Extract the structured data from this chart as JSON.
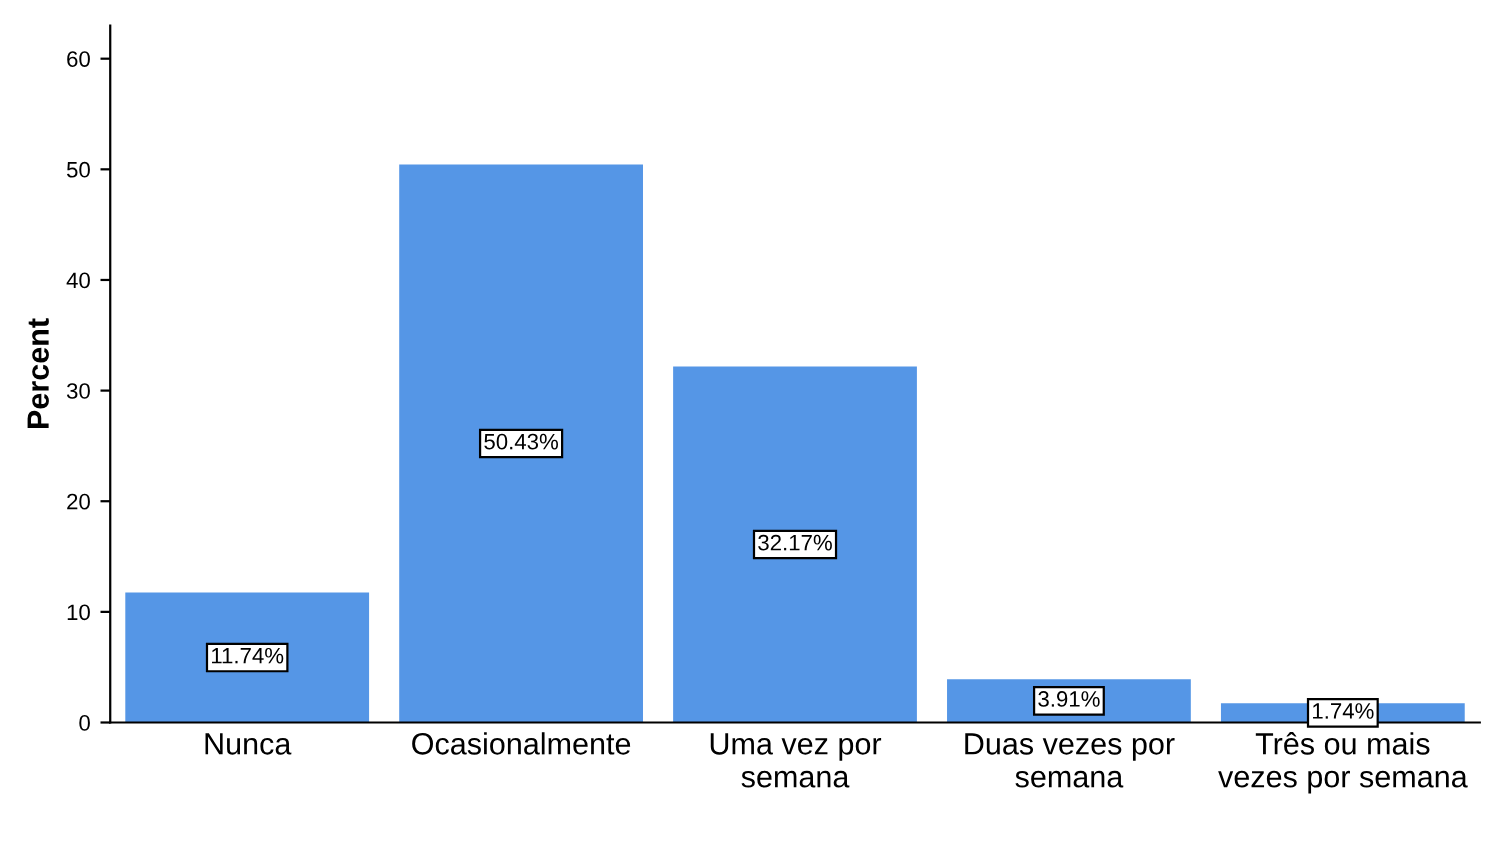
{
  "chart_data": {
    "type": "bar",
    "ylabel": "Percent",
    "categories": [
      "Nunca",
      "Ocasionalmente",
      "Uma vez por\nsemana",
      "Duas vezes por\nsemana",
      "Três ou mais\nvezes por semana"
    ],
    "values": [
      11.74,
      50.43,
      32.17,
      3.91,
      1.74
    ],
    "value_labels": [
      "11.74%",
      "50.43%",
      "32.17%",
      "3.91%",
      "1.74%"
    ],
    "color": "#5596e6",
    "ylim": [
      0,
      63
    ],
    "yticks": [
      0,
      10,
      20,
      30,
      40,
      50,
      60
    ],
    "grid": false,
    "legend": false
  }
}
